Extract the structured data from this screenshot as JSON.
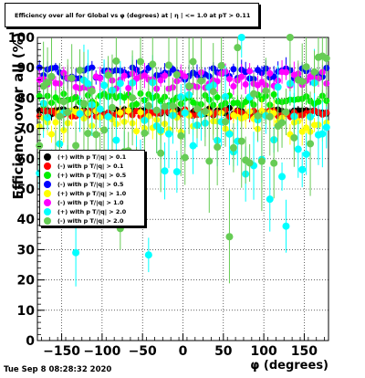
{
  "page": {
    "title": "Efficiency over all for Global vs φ (degrees) at | η | <= 1.0 at pT > 0.11",
    "ylabel": "Efficiency over all (%)",
    "xlabel": "φ (degrees)",
    "timestamp": "Tue Sep  8 08:28:32 2020"
  },
  "chart_data": {
    "type": "scatter",
    "xlim": [
      -180,
      180
    ],
    "ylim": [
      0,
      100
    ],
    "xticks": [
      -150,
      -100,
      -50,
      0,
      50,
      100,
      150
    ],
    "yticks": [
      0,
      10,
      20,
      30,
      40,
      50,
      60,
      70,
      80,
      90,
      100
    ],
    "grid": true,
    "legend_position": "middle-left",
    "series": [
      {
        "name": "(+) with p T/|q| > 0.1",
        "color": "#000000",
        "center": 75.5,
        "spread": 1.2,
        "err": 1.5
      },
      {
        "name": "(-) with p T/|q| > 0.1",
        "color": "#ff0000",
        "center": 75.0,
        "spread": 1.3,
        "err": 1.6
      },
      {
        "name": "(+) with p T/|q| > 0.5",
        "color": "#00ee00",
        "center": 79.5,
        "spread": 2.0,
        "err": 2.0
      },
      {
        "name": "(-) with p T/|q| > 0.5",
        "color": "#0000ff",
        "center": 88.0,
        "spread": 2.2,
        "err": 2.5
      },
      {
        "name": "(+) with p T/|q| > 1.0",
        "color": "#ffff00",
        "center": 72.0,
        "spread": 4.0,
        "err": 3.5
      },
      {
        "name": "(-) with p T/|q| > 1.0",
        "color": "#ff00ff",
        "center": 86.0,
        "spread": 3.0,
        "err": 3.0
      },
      {
        "name": "(+) with p T/|q| > 2.0",
        "color": "#00ffff",
        "center": 70.0,
        "spread": 16.0,
        "err": 8.0
      },
      {
        "name": "(-) with p T/|q| > 2.0",
        "color": "#66cc55",
        "center": 76.0,
        "spread": 18.0,
        "err": 12.0
      }
    ],
    "x_bins": 72
  }
}
